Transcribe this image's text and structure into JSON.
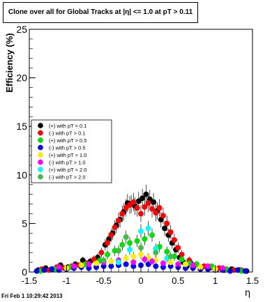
{
  "chart_data": {
    "type": "scatter",
    "title": "Clone  over all for Global Tracks at |η| <= 1.0 at pT > 0.11",
    "xlabel": "η",
    "ylabel": "Efficiency (%)",
    "xlim": [
      -1.5,
      1.5
    ],
    "ylim": [
      0,
      25
    ],
    "xticks": [
      "-1.5",
      "-1",
      "-0.5",
      "0",
      "0.5",
      "1",
      "1.5"
    ],
    "yticks": [
      "0",
      "5",
      "10",
      "15",
      "20",
      "25"
    ],
    "grid": false,
    "legend_position": "middle-left",
    "series": [
      {
        "name": "(+) with pT > 0.1",
        "color": "#000000",
        "x": [
          -1.38,
          -1.28,
          -1.18,
          -1.08,
          -0.98,
          -0.88,
          -0.78,
          -0.68,
          -0.58,
          -0.48,
          -0.43,
          -0.38,
          -0.33,
          -0.28,
          -0.23,
          -0.18,
          -0.13,
          -0.08,
          -0.03,
          0.02,
          0.07,
          0.12,
          0.17,
          0.22,
          0.27,
          0.32,
          0.37,
          0.42,
          0.47,
          0.52,
          0.57,
          0.62,
          0.67,
          0.72,
          0.82,
          0.92,
          1.02,
          1.12,
          1.22,
          1.32,
          1.42
        ],
        "y": [
          0.2,
          0.4,
          0.3,
          0.7,
          0.5,
          0.8,
          1.2,
          1.1,
          1.5,
          2.8,
          3.4,
          4.0,
          4.8,
          5.4,
          6.2,
          7.1,
          7.0,
          6.8,
          7.3,
          7.6,
          8.0,
          7.5,
          7.2,
          6.3,
          5.4,
          4.5,
          3.8,
          3.0,
          2.3,
          1.5,
          1.0,
          0.6,
          0.9,
          0.7,
          0.5,
          0.4,
          0.3,
          0.2,
          0.3,
          0.2,
          0.1
        ]
      },
      {
        "name": "(-) with pT > 0.1",
        "color": "#ff0000",
        "x": [
          -1.33,
          -1.23,
          -1.13,
          -1.03,
          -0.93,
          -0.83,
          -0.73,
          -0.63,
          -0.53,
          -0.45,
          -0.4,
          -0.35,
          -0.3,
          -0.25,
          -0.2,
          -0.15,
          -0.1,
          -0.05,
          0.0,
          0.05,
          0.1,
          0.15,
          0.2,
          0.25,
          0.3,
          0.35,
          0.4,
          0.45,
          0.5,
          0.55,
          0.65,
          0.75,
          0.85,
          0.95,
          1.05,
          1.15,
          1.25,
          1.35
        ],
        "y": [
          0.3,
          0.2,
          0.5,
          0.4,
          0.6,
          0.7,
          0.9,
          1.3,
          2.0,
          3.0,
          3.8,
          4.6,
          5.3,
          6.0,
          6.6,
          6.9,
          7.2,
          6.6,
          6.0,
          6.7,
          7.1,
          6.5,
          6.1,
          6.6,
          5.8,
          5.0,
          4.1,
          3.3,
          2.5,
          1.8,
          1.2,
          0.8,
          0.6,
          0.5,
          0.4,
          0.3,
          0.2,
          0.2
        ]
      },
      {
        "name": "(+) with pT > 0.5",
        "color": "#00dd00",
        "x": [
          -1.35,
          -1.15,
          -0.95,
          -0.75,
          -0.55,
          -0.45,
          -0.35,
          -0.25,
          -0.15,
          -0.05,
          0.05,
          0.15,
          0.25,
          0.35,
          0.45,
          0.55,
          0.65,
          0.75,
          0.95,
          1.15,
          1.35
        ],
        "y": [
          0.1,
          0.3,
          0.5,
          0.8,
          1.2,
          1.8,
          2.2,
          2.8,
          3.0,
          3.2,
          3.4,
          3.8,
          2.6,
          2.1,
          1.6,
          1.3,
          0.9,
          0.8,
          0.6,
          0.3,
          0.1
        ]
      },
      {
        "name": "(-) with pT > 0.5",
        "color": "#0000ff",
        "x": [
          -1.4,
          -1.3,
          -1.2,
          -1.1,
          -1.0,
          -0.9,
          -0.8,
          -0.7,
          -0.6,
          -0.5,
          -0.4,
          -0.3,
          -0.2,
          -0.1,
          0.0,
          0.1,
          0.2,
          0.3,
          0.4,
          0.5,
          0.6,
          0.7,
          0.8,
          0.9,
          1.0,
          1.1,
          1.2,
          1.3,
          1.4
        ],
        "y": [
          0.1,
          0.2,
          0.3,
          0.2,
          0.3,
          0.4,
          0.5,
          0.4,
          0.5,
          0.6,
          0.6,
          0.7,
          0.8,
          0.6,
          0.7,
          0.8,
          0.6,
          0.5,
          0.6,
          0.5,
          0.4,
          0.4,
          0.3,
          0.3,
          0.2,
          0.2,
          0.1,
          0.2,
          0.1
        ]
      },
      {
        "name": "(+) with pT > 1.0",
        "color": "#ffee00",
        "x": [
          -1.0,
          -0.8,
          -0.6,
          -0.4,
          -0.2,
          -0.1,
          0.0,
          0.1,
          0.2,
          0.4,
          0.6,
          0.8,
          1.0
        ],
        "y": [
          0.4,
          0.7,
          0.9,
          1.1,
          1.4,
          1.6,
          1.8,
          1.5,
          1.2,
          1.0,
          0.8,
          0.5,
          0.3
        ]
      },
      {
        "name": "(-) with pT > 1.0",
        "color": "#ff00ff",
        "x": [
          -1.1,
          -0.9,
          -0.7,
          -0.5,
          -0.3,
          -0.1,
          0.05,
          0.15,
          0.3,
          0.5,
          0.7,
          0.9,
          1.1
        ],
        "y": [
          0.5,
          0.6,
          0.8,
          1.0,
          1.2,
          1.0,
          1.3,
          1.1,
          0.9,
          0.8,
          0.7,
          0.6,
          0.4
        ]
      },
      {
        "name": "(+) with pT > 2.0",
        "color": "#00ffff",
        "x": [
          -0.3,
          -0.15,
          0.0,
          0.1,
          0.2,
          0.35
        ],
        "y": [
          1.0,
          2.3,
          4.2,
          4.5,
          2.4,
          1.4
        ]
      },
      {
        "name": "(-) with pT > 2.0",
        "color": "#44bb44",
        "x": [
          -0.5,
          -0.3,
          -0.2,
          0.0,
          0.2,
          0.4
        ],
        "y": [
          1.2,
          2.2,
          3.6,
          2.5,
          2.0,
          1.6
        ]
      }
    ]
  },
  "footer": {
    "timestamp": "Fri Feb  1 10:29:42 2013"
  }
}
